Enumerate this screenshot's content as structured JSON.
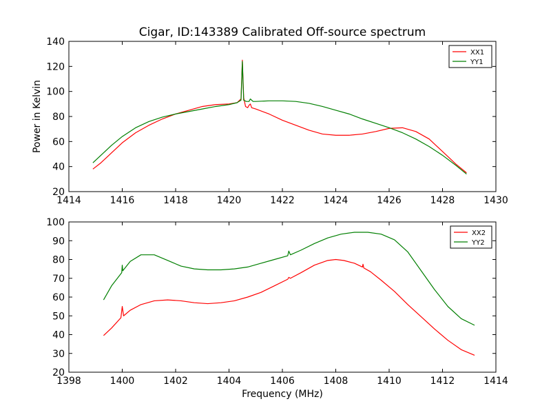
{
  "chart_data": [
    {
      "type": "line",
      "title": "Cigar, ID:143389 Calibrated Off-source spectrum",
      "xlabel": "",
      "ylabel": "Power in Kelvin",
      "xlim": [
        1414,
        1430
      ],
      "ylim": [
        20,
        140
      ],
      "xticks": [
        "1414",
        "1416",
        "1418",
        "1420",
        "1422",
        "1424",
        "1426",
        "1428",
        "1430"
      ],
      "yticks": [
        "20",
        "40",
        "60",
        "80",
        "100",
        "120",
        "140"
      ],
      "grid": false,
      "legend_position": "top-right",
      "series": [
        {
          "name": "XX1",
          "color": "#ff0000",
          "x": [
            1414.9,
            1415.2,
            1415.6,
            1416.0,
            1416.5,
            1417.0,
            1417.5,
            1418.0,
            1418.5,
            1419.0,
            1419.5,
            1420.0,
            1420.3,
            1420.45,
            1420.5,
            1420.55,
            1420.62,
            1420.7,
            1420.75,
            1420.8,
            1420.85,
            1421.0,
            1421.5,
            1422.0,
            1422.5,
            1423.0,
            1423.5,
            1424.0,
            1424.5,
            1425.0,
            1425.5,
            1426.0,
            1426.5,
            1427.0,
            1427.5,
            1428.0,
            1428.5,
            1428.9
          ],
          "y": [
            38,
            43,
            51,
            59,
            67,
            73,
            78,
            82,
            85,
            88,
            89.5,
            90,
            91,
            94,
            125,
            95,
            88,
            87,
            89,
            90,
            87,
            86,
            82,
            77,
            73,
            69,
            66,
            65,
            65,
            66,
            68,
            70.5,
            71,
            68,
            62,
            52,
            42,
            35
          ]
        },
        {
          "name": "YY1",
          "color": "#007f00",
          "x": [
            1414.9,
            1415.2,
            1415.6,
            1416.0,
            1416.5,
            1417.0,
            1417.5,
            1418.0,
            1418.5,
            1419.0,
            1419.5,
            1420.0,
            1420.3,
            1420.45,
            1420.5,
            1420.55,
            1420.65,
            1420.75,
            1420.8,
            1420.9,
            1421.0,
            1421.5,
            1422.0,
            1422.5,
            1423.0,
            1423.5,
            1424.0,
            1424.5,
            1425.0,
            1425.5,
            1426.0,
            1426.5,
            1427.0,
            1427.5,
            1428.0,
            1428.5,
            1428.9
          ],
          "y": [
            43,
            49,
            57,
            64,
            71,
            76,
            79.5,
            82,
            84,
            86,
            88,
            89.5,
            91,
            93,
            124,
            93,
            92,
            92,
            94,
            92,
            92,
            92.5,
            92.5,
            92,
            90.5,
            88,
            85,
            82,
            78,
            74.5,
            71,
            67,
            62,
            56,
            49,
            41,
            34
          ]
        }
      ]
    },
    {
      "type": "line",
      "title": "",
      "xlabel": "Frequency (MHz)",
      "ylabel": "",
      "xlim": [
        1398,
        1414
      ],
      "ylim": [
        20,
        100
      ],
      "xticks": [
        "1398",
        "1400",
        "1402",
        "1404",
        "1406",
        "1408",
        "1410",
        "1412",
        "1414"
      ],
      "yticks": [
        "20",
        "30",
        "40",
        "50",
        "60",
        "70",
        "80",
        "90",
        "100"
      ],
      "grid": false,
      "legend_position": "top-right",
      "series": [
        {
          "name": "XX2",
          "color": "#ff0000",
          "x": [
            1399.3,
            1399.6,
            1399.95,
            1400.0,
            1400.05,
            1400.3,
            1400.7,
            1401.2,
            1401.7,
            1402.2,
            1402.7,
            1403.2,
            1403.7,
            1404.2,
            1404.7,
            1405.2,
            1405.7,
            1406.2,
            1406.24,
            1406.3,
            1406.7,
            1407.2,
            1407.7,
            1408.0,
            1408.3,
            1408.7,
            1409.0,
            1409.02,
            1409.05,
            1409.3,
            1409.7,
            1410.2,
            1410.7,
            1411.2,
            1411.7,
            1412.2,
            1412.7,
            1413.2
          ],
          "y": [
            39.5,
            43.5,
            49,
            55,
            50,
            53,
            56,
            58,
            58.5,
            58,
            57,
            56.5,
            57,
            58,
            60,
            62.5,
            66,
            69.5,
            70.5,
            70,
            73,
            77,
            79.5,
            80,
            79.5,
            78,
            76,
            77.5,
            75.5,
            73.5,
            69,
            63,
            56,
            49.5,
            43,
            37,
            32,
            29
          ]
        },
        {
          "name": "YY2",
          "color": "#007f00",
          "x": [
            1399.3,
            1399.6,
            1399.98,
            1400.0,
            1400.02,
            1400.3,
            1400.7,
            1401.2,
            1401.7,
            1402.2,
            1402.7,
            1403.2,
            1403.7,
            1404.2,
            1404.7,
            1405.2,
            1405.7,
            1406.2,
            1406.24,
            1406.3,
            1406.7,
            1407.2,
            1407.7,
            1408.2,
            1408.7,
            1409.2,
            1409.7,
            1410.2,
            1410.7,
            1411.2,
            1411.7,
            1412.2,
            1412.7,
            1413.2
          ],
          "y": [
            58.5,
            66,
            73,
            77,
            74,
            79,
            82.5,
            82.5,
            79.5,
            76.5,
            75,
            74.5,
            74.5,
            75,
            76,
            78,
            80,
            82,
            84.5,
            82.5,
            85,
            88.5,
            91.5,
            93.5,
            94.5,
            94.5,
            93.5,
            90.5,
            84,
            74,
            64,
            55,
            48.5,
            45
          ]
        }
      ]
    }
  ]
}
